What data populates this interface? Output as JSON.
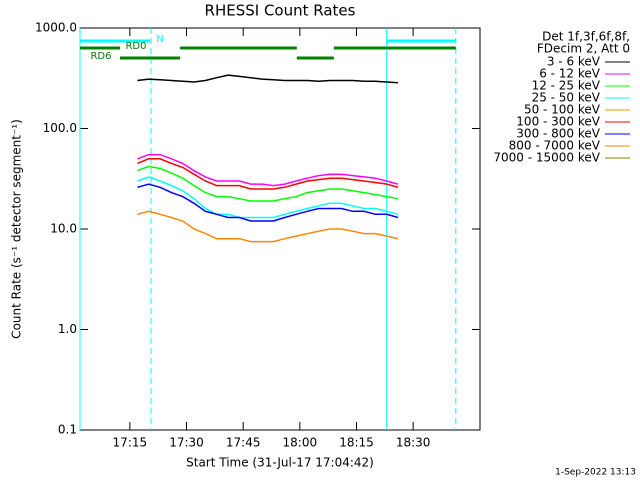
{
  "chart_data": {
    "type": "line",
    "title": "RHESSI Count Rates",
    "x_label": "Start Time (31-Jul-17 17:04:42)",
    "y_label": "Count Rate (s⁻¹ detector segment⁻¹)",
    "legend_title": [
      "Det 1f,3f,6f,8f,",
      "FDecim 2, Att 0"
    ],
    "footer": "1-Sep-2022 13:13",
    "log_y": true,
    "legend": "right",
    "xlim": [
      1021.8,
      1127.7
    ],
    "xticks": [
      {
        "value": 1035,
        "label": "17:15"
      },
      {
        "value": 1050,
        "label": "17:30"
      },
      {
        "value": 1065,
        "label": "17:45"
      },
      {
        "value": 1080,
        "label": "18:00"
      },
      {
        "value": 1095,
        "label": "18:15"
      },
      {
        "value": 1110,
        "label": "18:30"
      }
    ],
    "ylim": [
      0.1,
      1000
    ],
    "yticks": [
      {
        "value": 1000,
        "label": "1000.0"
      },
      {
        "value": 100,
        "label": "100.0"
      },
      {
        "value": 10,
        "label": "10.0"
      },
      {
        "value": 1,
        "label": "1.0"
      },
      0.1
    ],
    "x": [
      1037,
      1040,
      1043,
      1046,
      1049,
      1052,
      1055,
      1058,
      1061,
      1064,
      1067,
      1070,
      1073,
      1076,
      1079,
      1082,
      1085,
      1088,
      1091,
      1094,
      1097,
      1100,
      1103,
      1106
    ],
    "series": [
      {
        "name": "3 - 6 keV",
        "color": "#000000",
        "values": [
          300,
          310,
          305,
          300,
          295,
          290,
          300,
          320,
          340,
          330,
          320,
          310,
          305,
          300,
          300,
          300,
          295,
          300,
          300,
          300,
          295,
          295,
          290,
          285
        ]
      },
      {
        "name": "6 - 12 keV",
        "color": "#ff00ff",
        "values": [
          50,
          55,
          55,
          50,
          45,
          38,
          33,
          30,
          30,
          30,
          28,
          28,
          27,
          28,
          30,
          32,
          34,
          35,
          35,
          34,
          33,
          32,
          30,
          28
        ]
      },
      {
        "name": "12 - 25 keV",
        "color": "#00ff00",
        "values": [
          38,
          42,
          40,
          36,
          32,
          27,
          23,
          21,
          21,
          20,
          19,
          19,
          19,
          20,
          21,
          23,
          24,
          25,
          25,
          24,
          23,
          22,
          21,
          20
        ]
      },
      {
        "name": "25 - 50 keV",
        "color": "#00ffff",
        "values": [
          30,
          33,
          30,
          27,
          24,
          20,
          16,
          14,
          14,
          13,
          13,
          13,
          13,
          14,
          15,
          16,
          17,
          18,
          18,
          17,
          16,
          16,
          15,
          14
        ]
      },
      {
        "name": "50 - 100 keV",
        "color": "#e0a000",
        "values": [
          null,
          null,
          null,
          null,
          null,
          null,
          null,
          null,
          null,
          null,
          null,
          null,
          null,
          null,
          null,
          null,
          null,
          null,
          null,
          null,
          null,
          null,
          null,
          null
        ]
      },
      {
        "name": "100 - 300 keV",
        "color": "#ff0000",
        "values": [
          45,
          50,
          50,
          45,
          41,
          35,
          30,
          27,
          27,
          27,
          25,
          25,
          25,
          26,
          28,
          30,
          31,
          32,
          32,
          31,
          30,
          29,
          28,
          26
        ]
      },
      {
        "name": "300 - 800 keV",
        "color": "#0000ff",
        "values": [
          26,
          28,
          26,
          23,
          21,
          18,
          15,
          14,
          13,
          13,
          12,
          12,
          12,
          13,
          14,
          15,
          16,
          16,
          16,
          15,
          15,
          14,
          14,
          13
        ]
      },
      {
        "name": "800 - 7000 keV",
        "color": "#ff8800",
        "values": [
          14,
          15,
          14,
          13,
          12,
          10,
          9,
          8,
          8,
          8,
          7.5,
          7.5,
          7.5,
          8,
          8.5,
          9,
          9.5,
          10,
          10,
          9.5,
          9,
          9,
          8.5,
          8
        ]
      },
      {
        "name": "7000 - 15000 keV",
        "color": "#808000",
        "values": [
          null,
          null,
          null,
          null,
          null,
          null,
          null,
          null,
          null,
          null,
          null,
          null,
          null,
          null,
          null,
          null,
          null,
          null,
          null,
          null,
          null,
          null,
          null,
          null
        ]
      }
    ],
    "vlines": [
      {
        "x": 1021.8,
        "color": "#00ffff",
        "dashed": false
      },
      {
        "x": 1040.6,
        "color": "#00ffff",
        "dashed": true
      },
      {
        "x": 1103.0,
        "color": "#00ffff",
        "dashed": false
      },
      {
        "x": 1121.3,
        "color": "#00ffff",
        "dashed": true
      }
    ],
    "flags": [
      {
        "label": "N",
        "color": "#00ffff",
        "spans": [
          [
            1021.8,
            1040.3
          ],
          [
            1103.0,
            1121.3
          ]
        ]
      },
      {
        "label": "RD0",
        "color": "#008000",
        "spans": [
          [
            1021.8,
            1032.4
          ],
          [
            1048.3,
            1079.2
          ],
          [
            1089.0,
            1121.3
          ]
        ]
      },
      {
        "label": "RD6",
        "color": "#008000",
        "spans": [
          [
            1032.4,
            1048.3
          ],
          [
            1079.2,
            1089.0
          ]
        ]
      }
    ]
  }
}
